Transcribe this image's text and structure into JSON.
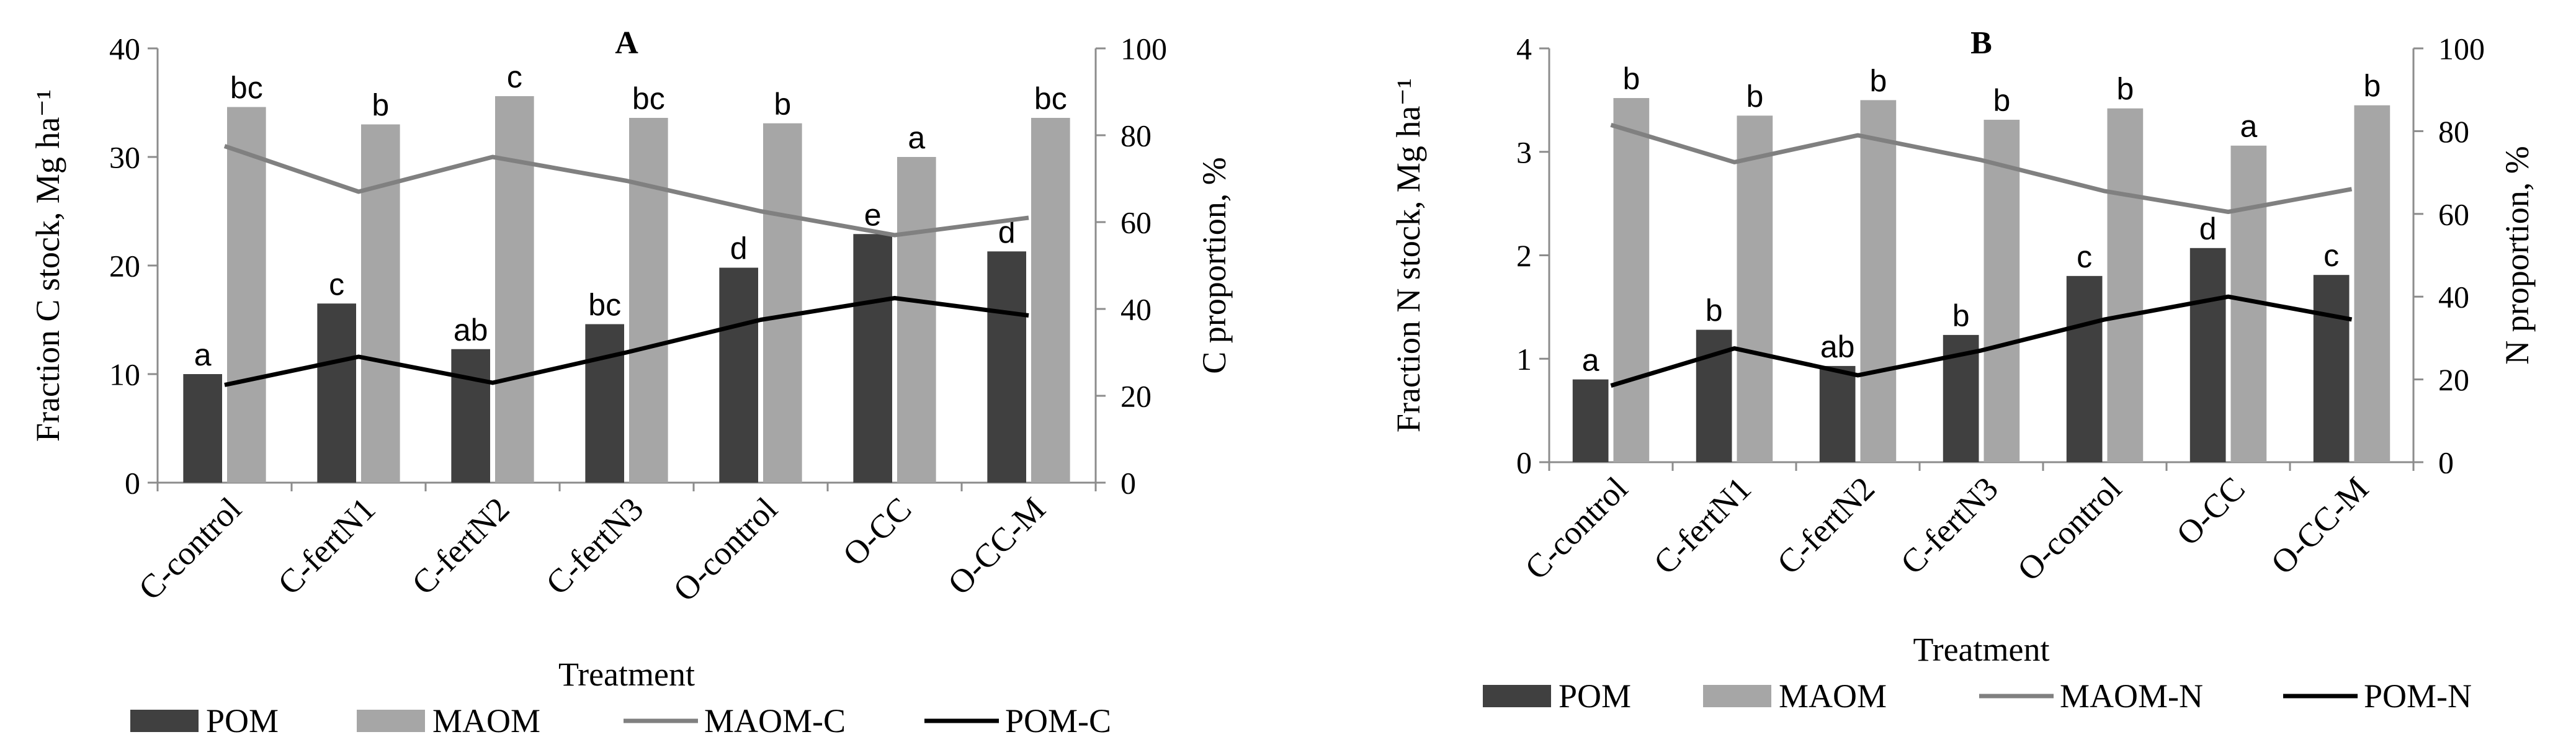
{
  "colors": {
    "pom": "#404040",
    "maom": "#a6a6a6",
    "maom_line": "#808080",
    "pom_line": "#000000",
    "axis": "#8c8c8c",
    "text": "#000000"
  },
  "chart_data": [
    {
      "type": "bar",
      "panel_label": "A",
      "categories": [
        "C-control",
        "C-fertN1",
        "C-fertN2",
        "C-fertN3",
        "O-control",
        "O-CC",
        "O-CC-M"
      ],
      "series": [
        {
          "name": "POM",
          "kind": "bar",
          "axis": "left",
          "values": [
            10,
            16.5,
            12.3,
            14.6,
            19.8,
            22.9,
            21.3
          ],
          "letters": [
            "a",
            "c",
            "ab",
            "bc",
            "d",
            "e",
            "d"
          ]
        },
        {
          "name": "MAOM",
          "kind": "bar",
          "axis": "left",
          "values": [
            34.6,
            33.0,
            35.6,
            33.6,
            33.1,
            30.0,
            33.6
          ],
          "letters": [
            "bc",
            "b",
            "c",
            "bc",
            "b",
            "a",
            "bc"
          ]
        },
        {
          "name": "MAOM-C",
          "kind": "line",
          "axis": "right",
          "values": [
            77.5,
            67,
            75,
            69.5,
            62.5,
            57,
            61
          ]
        },
        {
          "name": "POM-C",
          "kind": "line",
          "axis": "right",
          "values": [
            22.5,
            29,
            23,
            30,
            37.5,
            42.5,
            38.5
          ]
        }
      ],
      "ylabel": "Fraction C stock, Mg ha⁻¹",
      "y2label": "C proportion, %",
      "xlabel": "Treatment",
      "ylim": [
        0,
        40
      ],
      "yticks": [
        0,
        10,
        20,
        30,
        40
      ],
      "y2lim": [
        0,
        100
      ],
      "y2ticks": [
        0,
        20,
        40,
        60,
        80,
        100
      ],
      "legend": [
        "POM",
        "MAOM",
        "MAOM-C",
        "POM-C"
      ],
      "legend_position": "bottom"
    },
    {
      "type": "bar",
      "panel_label": "B",
      "categories": [
        "C-control",
        "C-fertN1",
        "C-fertN2",
        "C-fertN3",
        "O-control",
        "O-CC",
        "O-CC-M"
      ],
      "series": [
        {
          "name": "POM",
          "kind": "bar",
          "axis": "left",
          "values": [
            0.8,
            1.28,
            0.93,
            1.23,
            1.8,
            2.07,
            1.81
          ],
          "letters": [
            "a",
            "b",
            "ab",
            "b",
            "c",
            "d",
            "c"
          ]
        },
        {
          "name": "MAOM",
          "kind": "bar",
          "axis": "left",
          "values": [
            3.52,
            3.35,
            3.5,
            3.31,
            3.42,
            3.06,
            3.45
          ],
          "letters": [
            "b",
            "b",
            "b",
            "b",
            "b",
            "a",
            "b"
          ]
        },
        {
          "name": "MAOM-N",
          "kind": "line",
          "axis": "right",
          "values": [
            81.5,
            72.5,
            79,
            73,
            65.5,
            60.5,
            66
          ]
        },
        {
          "name": "POM-N",
          "kind": "line",
          "axis": "right",
          "values": [
            18.5,
            27.5,
            21,
            27,
            34.5,
            40,
            34.5
          ]
        }
      ],
      "ylabel": "Fraction N stock, Mg ha⁻¹",
      "y2label": "N proportion, %",
      "xlabel": "Treatment",
      "ylim": [
        0,
        4
      ],
      "yticks": [
        0,
        1,
        2,
        3,
        4
      ],
      "y2lim": [
        0,
        100
      ],
      "y2ticks": [
        0,
        20,
        40,
        60,
        80,
        100
      ],
      "legend": [
        "POM",
        "MAOM",
        "MAOM-N",
        "POM-N"
      ],
      "legend_position": "bottom"
    }
  ]
}
